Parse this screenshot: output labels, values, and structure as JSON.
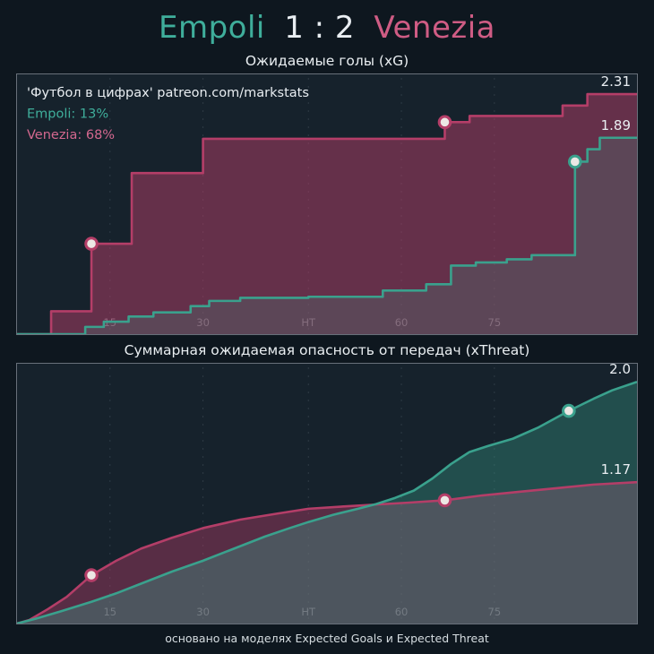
{
  "header": {
    "home_team": "Empoli",
    "score": "1 : 2",
    "away_team": "Venezia"
  },
  "colors": {
    "empoli": "#3fae9b",
    "venezia": "#cf5c84",
    "score_text": "#e9eef2",
    "grid": "#2e3b45",
    "tick_label": "#79848c",
    "value_label": "#e9eef2",
    "marker_fill": "#ece7e4"
  },
  "footer": {
    "note": "основано на моделях Expected Goals и Expected Threat"
  },
  "chart_data": [
    {
      "type": "step-area",
      "title": "Ожидаемые голы (xG)",
      "xlabel": "",
      "ylabel": "",
      "x_domain": [
        0,
        100
      ],
      "y_domain": [
        0,
        2.5
      ],
      "grid": "on",
      "ticks": [
        {
          "x": 15,
          "label": "15"
        },
        {
          "x": 30,
          "label": "30"
        },
        {
          "x": 47,
          "label": "HT"
        },
        {
          "x": 62,
          "label": "60"
        },
        {
          "x": 77,
          "label": "75"
        }
      ],
      "annotations": [
        {
          "text": "'Футбол в цифрах' patreon.com/markstats",
          "color": "#e9eef2"
        },
        {
          "text": "Empoli: 13%",
          "color": "#3fae9b"
        },
        {
          "text": "Venezia: 68%",
          "color": "#d4688f"
        }
      ],
      "series": [
        {
          "name": "venezia-xg",
          "label": "Venezia",
          "step": true,
          "color": "#b43e68",
          "fill": "rgba(180,62,104,0.5)",
          "end_label": "2.31",
          "final_value": 2.31,
          "points": [
            [
              0,
              0
            ],
            [
              5.5,
              0.22
            ],
            [
              12,
              0.87
            ],
            [
              18.5,
              1.55
            ],
            [
              30,
              1.88
            ],
            [
              69,
              2.04
            ],
            [
              73,
              2.1
            ],
            [
              88,
              2.2
            ],
            [
              92,
              2.31
            ],
            [
              100,
              2.31
            ]
          ],
          "markers": [
            [
              12,
              0.87
            ],
            [
              69,
              2.04
            ]
          ]
        },
        {
          "name": "empoli-xg",
          "label": "Empoli",
          "step": true,
          "color": "#3aa18d",
          "fill": "rgba(58,161,141,0.2)",
          "end_label": "1.89",
          "final_value": 1.89,
          "points": [
            [
              0,
              0
            ],
            [
              11,
              0.07
            ],
            [
              14,
              0.12
            ],
            [
              18,
              0.17
            ],
            [
              22,
              0.21
            ],
            [
              28,
              0.27
            ],
            [
              31,
              0.32
            ],
            [
              36,
              0.35
            ],
            [
              47,
              0.36
            ],
            [
              59,
              0.42
            ],
            [
              66,
              0.48
            ],
            [
              70,
              0.66
            ],
            [
              74,
              0.69
            ],
            [
              79,
              0.72
            ],
            [
              83,
              0.76
            ],
            [
              90,
              1.66
            ],
            [
              92,
              1.78
            ],
            [
              94,
              1.89
            ],
            [
              100,
              1.89
            ]
          ],
          "markers": [
            [
              90,
              1.66
            ]
          ]
        }
      ]
    },
    {
      "type": "area",
      "title": "Суммарная ожидаемая опасность от передач (xThreat)",
      "xlabel": "",
      "ylabel": "",
      "x_domain": [
        0,
        100
      ],
      "y_domain": [
        0,
        2.15
      ],
      "grid": "on",
      "ticks": [
        {
          "x": 15,
          "label": "15"
        },
        {
          "x": 30,
          "label": "30"
        },
        {
          "x": 47,
          "label": "HT"
        },
        {
          "x": 62,
          "label": "60"
        },
        {
          "x": 77,
          "label": "75"
        }
      ],
      "annotations": [],
      "series": [
        {
          "name": "venezia-xthreat",
          "label": "Venezia",
          "step": false,
          "color": "#b43e68",
          "fill": "rgba(180,62,104,0.42)",
          "end_label": "1.17",
          "final_value": 1.17,
          "points": [
            [
              0,
              0
            ],
            [
              2,
              0.03
            ],
            [
              5,
              0.12
            ],
            [
              8,
              0.22
            ],
            [
              12,
              0.4
            ],
            [
              16,
              0.52
            ],
            [
              20,
              0.62
            ],
            [
              25,
              0.71
            ],
            [
              30,
              0.79
            ],
            [
              36,
              0.86
            ],
            [
              42,
              0.91
            ],
            [
              47,
              0.95
            ],
            [
              53,
              0.97
            ],
            [
              58,
              0.985
            ],
            [
              63,
              1.0
            ],
            [
              69,
              1.02
            ],
            [
              75,
              1.06
            ],
            [
              81,
              1.09
            ],
            [
              87,
              1.12
            ],
            [
              93,
              1.15
            ],
            [
              100,
              1.17
            ]
          ],
          "markers": [
            [
              12,
              0.4
            ],
            [
              69,
              1.02
            ]
          ]
        },
        {
          "name": "empoli-xthreat",
          "label": "Empoli",
          "step": false,
          "color": "#3aa18d",
          "fill": "rgba(58,161,141,0.35)",
          "end_label": "2.0",
          "final_value": 2.0,
          "points": [
            [
              0,
              0
            ],
            [
              3,
              0.04
            ],
            [
              7,
              0.1
            ],
            [
              12,
              0.18
            ],
            [
              16,
              0.25
            ],
            [
              20,
              0.33
            ],
            [
              25,
              0.43
            ],
            [
              30,
              0.52
            ],
            [
              35,
              0.62
            ],
            [
              40,
              0.72
            ],
            [
              44,
              0.79
            ],
            [
              47,
              0.84
            ],
            [
              51,
              0.9
            ],
            [
              55,
              0.95
            ],
            [
              58,
              0.99
            ],
            [
              61,
              1.04
            ],
            [
              64,
              1.1
            ],
            [
              67,
              1.2
            ],
            [
              70,
              1.32
            ],
            [
              73,
              1.42
            ],
            [
              76,
              1.47
            ],
            [
              80,
              1.53
            ],
            [
              84,
              1.62
            ],
            [
              89,
              1.76
            ],
            [
              93,
              1.86
            ],
            [
              96,
              1.93
            ],
            [
              100,
              2.0
            ]
          ],
          "markers": [
            [
              89,
              1.76
            ]
          ]
        }
      ]
    }
  ]
}
